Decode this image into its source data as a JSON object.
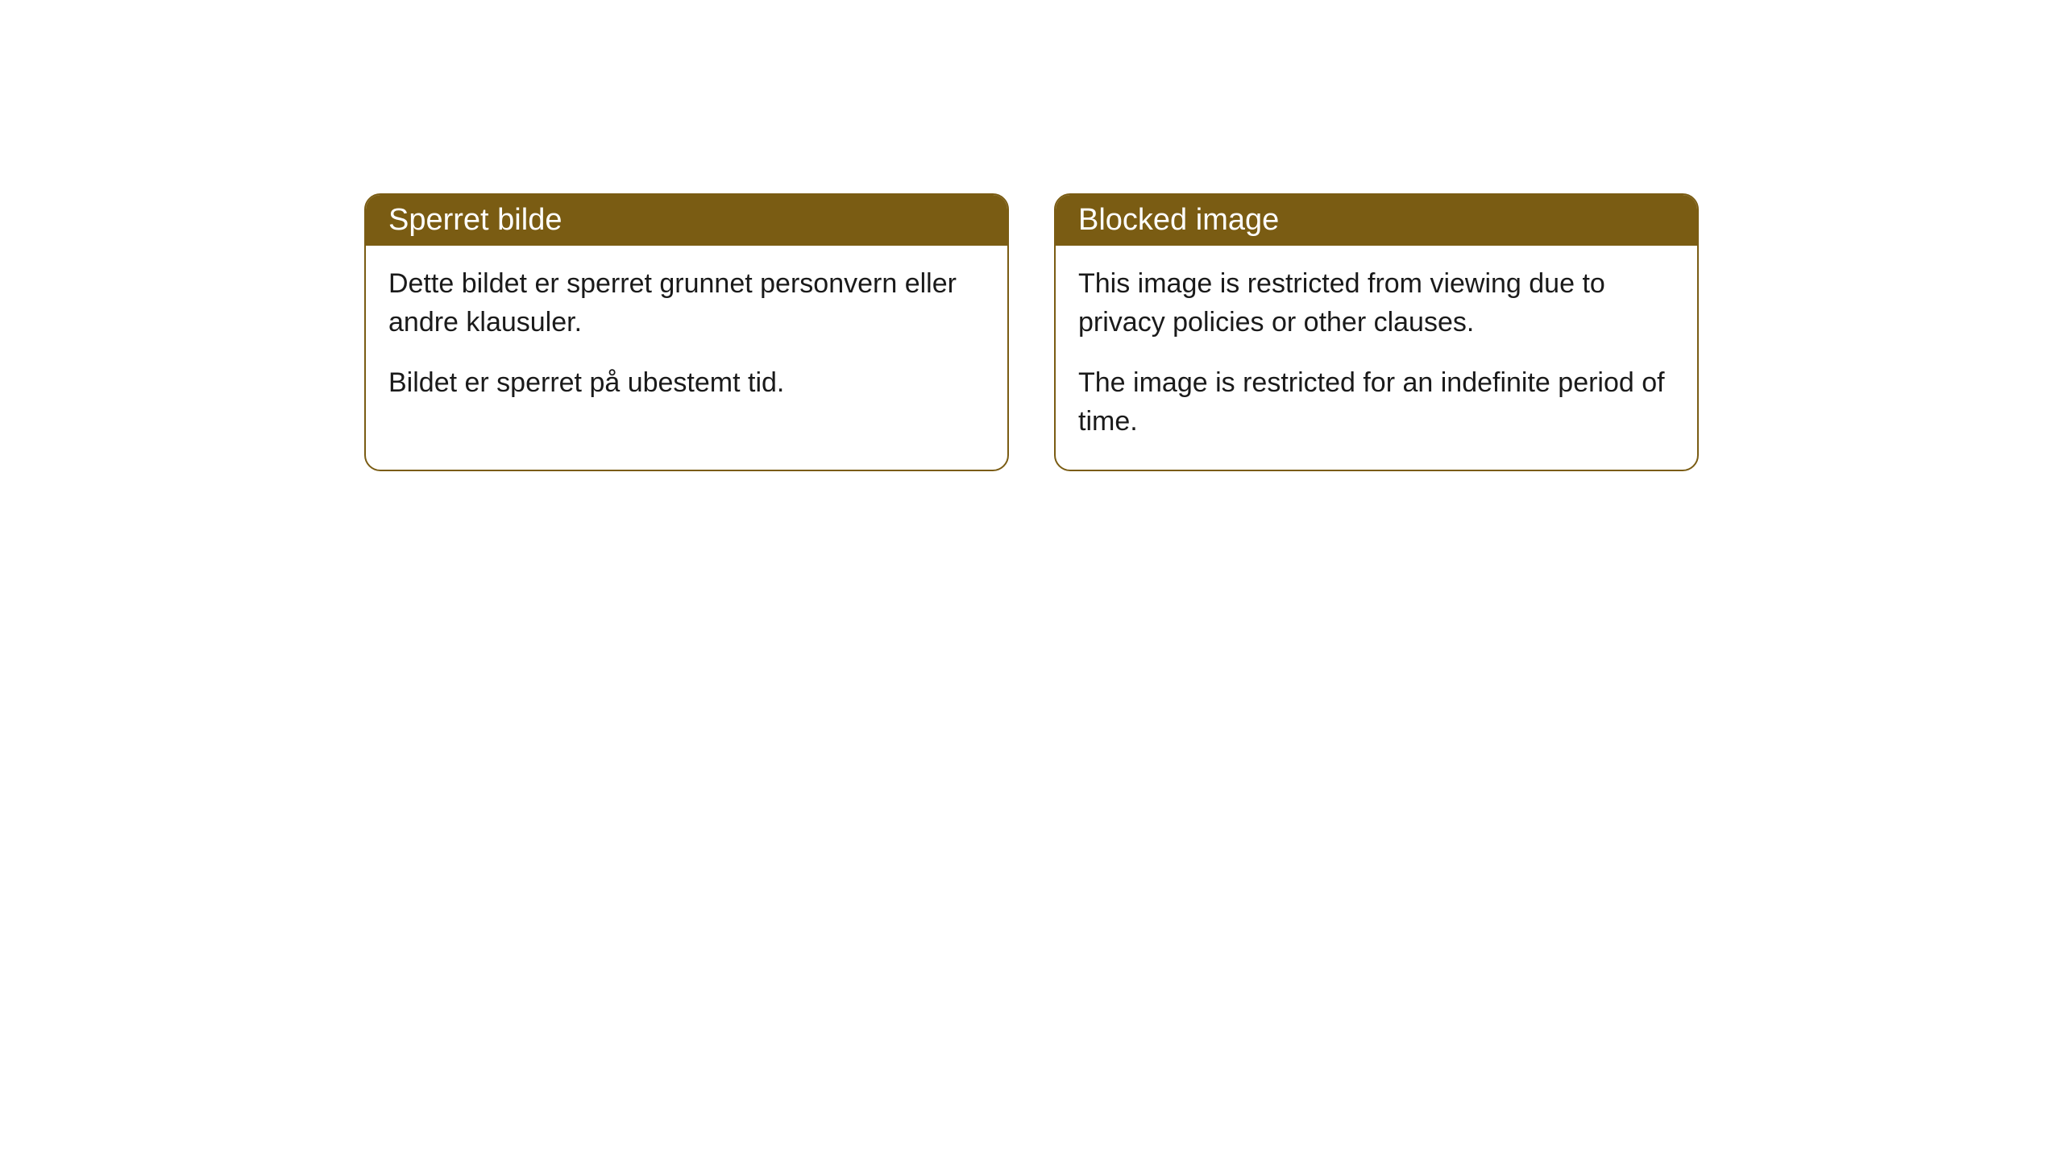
{
  "cards": [
    {
      "title": "Sperret bilde",
      "paragraph1": "Dette bildet er sperret grunnet personvern eller andre klausuler.",
      "paragraph2": "Bildet er sperret på ubestemt tid."
    },
    {
      "title": "Blocked image",
      "paragraph1": "This image is restricted from viewing due to privacy policies or other clauses.",
      "paragraph2": "The image is restricted for an indefinite period of time."
    }
  ],
  "styling": {
    "header_background": "#7a5c13",
    "header_text_color": "#ffffff",
    "card_border_color": "#7a5c13",
    "card_background": "#ffffff",
    "body_text_color": "#1a1a1a",
    "page_background": "#ffffff",
    "border_radius": 20,
    "title_fontsize": 38,
    "body_fontsize": 34
  }
}
